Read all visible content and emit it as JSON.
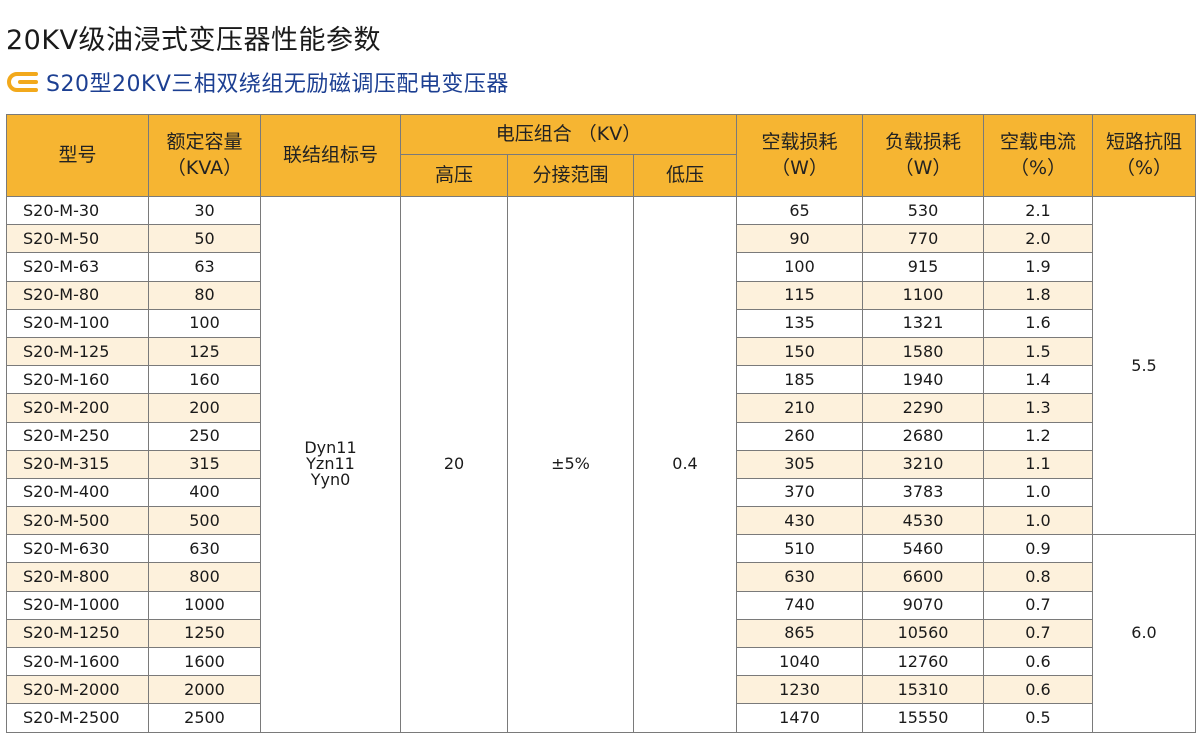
{
  "title": "20KV级油浸式变压器性能参数",
  "subtitle": "S20型20KV三相双绕组无励磁调压配电变压器",
  "colors": {
    "header_bg": "#f6b532",
    "stripe": "#fdf1dc",
    "subtitle": "#1c3f92",
    "icon": "#f2a91c"
  },
  "headers": {
    "model": "型号",
    "capacity": "额定容量",
    "capacity_unit": "（KVA）",
    "connection": "联结组标号",
    "voltage": "电压组合 （KV）",
    "hv": "高压",
    "tap": "分接范围",
    "lv": "低压",
    "noload_loss": "空载损耗",
    "noload_loss_unit": "（W）",
    "load_loss": "负载损耗",
    "load_loss_unit": "（W）",
    "noload_current": "空载电流",
    "noload_current_unit": "（%）",
    "impedance": "短路抗阻",
    "impedance_unit": "（%）"
  },
  "merged": {
    "connection": [
      "Dyn11",
      "Yzn11",
      "Yyn0"
    ],
    "hv": "20",
    "tap": "±5%",
    "lv": "0.4",
    "impedance_low": "5.5",
    "impedance_high": "6.0"
  },
  "rows": [
    {
      "model": "S20-M-30",
      "capacity": "30",
      "noload": "65",
      "load": "530",
      "current": "2.1"
    },
    {
      "model": "S20-M-50",
      "capacity": "50",
      "noload": "90",
      "load": "770",
      "current": "2.0"
    },
    {
      "model": "S20-M-63",
      "capacity": "63",
      "noload": "100",
      "load": "915",
      "current": "1.9"
    },
    {
      "model": "S20-M-80",
      "capacity": "80",
      "noload": "115",
      "load": "1100",
      "current": "1.8"
    },
    {
      "model": "S20-M-100",
      "capacity": "100",
      "noload": "135",
      "load": "1321",
      "current": "1.6"
    },
    {
      "model": "S20-M-125",
      "capacity": "125",
      "noload": "150",
      "load": "1580",
      "current": "1.5"
    },
    {
      "model": "S20-M-160",
      "capacity": "160",
      "noload": "185",
      "load": "1940",
      "current": "1.4"
    },
    {
      "model": "S20-M-200",
      "capacity": "200",
      "noload": "210",
      "load": "2290",
      "current": "1.3"
    },
    {
      "model": "S20-M-250",
      "capacity": "250",
      "noload": "260",
      "load": "2680",
      "current": "1.2"
    },
    {
      "model": "S20-M-315",
      "capacity": "315",
      "noload": "305",
      "load": "3210",
      "current": "1.1"
    },
    {
      "model": "S20-M-400",
      "capacity": "400",
      "noload": "370",
      "load": "3783",
      "current": "1.0"
    },
    {
      "model": "S20-M-500",
      "capacity": "500",
      "noload": "430",
      "load": "4530",
      "current": "1.0"
    },
    {
      "model": "S20-M-630",
      "capacity": "630",
      "noload": "510",
      "load": "5460",
      "current": "0.9"
    },
    {
      "model": "S20-M-800",
      "capacity": "800",
      "noload": "630",
      "load": "6600",
      "current": "0.8"
    },
    {
      "model": "S20-M-1000",
      "capacity": "1000",
      "noload": "740",
      "load": "9070",
      "current": "0.7"
    },
    {
      "model": "S20-M-1250",
      "capacity": "1250",
      "noload": "865",
      "load": "10560",
      "current": "0.7"
    },
    {
      "model": "S20-M-1600",
      "capacity": "1600",
      "noload": "1040",
      "load": "12760",
      "current": "0.6"
    },
    {
      "model": "S20-M-2000",
      "capacity": "2000",
      "noload": "1230",
      "load": "15310",
      "current": "0.6"
    },
    {
      "model": "S20-M-2500",
      "capacity": "2500",
      "noload": "1470",
      "load": "15550",
      "current": "0.5"
    }
  ]
}
